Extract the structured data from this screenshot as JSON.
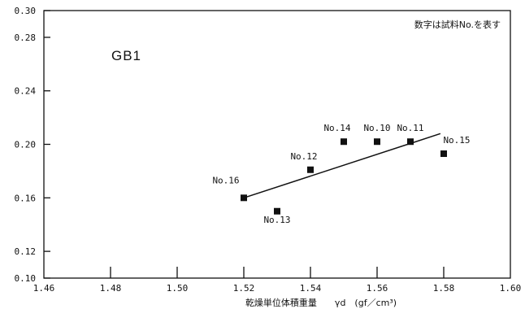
{
  "chart_data": {
    "type": "scatter",
    "title": "GB1",
    "annotation": "数字は試料No.を表す",
    "xlabel": "乾燥単位体積重量　　γd　(gf／cm³)",
    "ylabel": "",
    "xlim": [
      1.46,
      1.6
    ],
    "ylim": [
      0.1,
      0.3
    ],
    "x_ticks": [
      1.46,
      1.48,
      1.5,
      1.52,
      1.54,
      1.56,
      1.58,
      1.6
    ],
    "x_tick_labels": [
      "1.46",
      "1.48",
      "1.50",
      "1.52",
      "1.54",
      "1.56",
      "1.58",
      "1.60"
    ],
    "y_ticks": [
      0.1,
      0.12,
      0.16,
      0.2,
      0.24,
      0.28,
      0.3
    ],
    "y_tick_labels": [
      "0.10",
      "0.12",
      "0.16",
      "0.20",
      "0.24",
      "0.28",
      "0.30"
    ],
    "grid": false,
    "points": [
      {
        "label": "No.16",
        "x": 1.52,
        "y": 0.16
      },
      {
        "label": "No.13",
        "x": 1.53,
        "y": 0.15
      },
      {
        "label": "No.12",
        "x": 1.54,
        "y": 0.181
      },
      {
        "label": "No.14",
        "x": 1.55,
        "y": 0.202
      },
      {
        "label": "No.10",
        "x": 1.56,
        "y": 0.202
      },
      {
        "label": "No.11",
        "x": 1.57,
        "y": 0.202
      },
      {
        "label": "No.15",
        "x": 1.58,
        "y": 0.193
      }
    ],
    "trendline": {
      "x": [
        1.52,
        1.579
      ],
      "y": [
        0.16,
        0.208
      ]
    }
  }
}
